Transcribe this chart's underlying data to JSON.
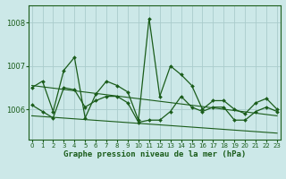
{
  "title": "Graphe pression niveau de la mer (hPa)",
  "background_color": "#cce8e8",
  "grid_color": "#aacccc",
  "line_color": "#1a5c1a",
  "x_ticks": [
    0,
    1,
    2,
    3,
    4,
    5,
    6,
    7,
    8,
    9,
    10,
    11,
    12,
    13,
    14,
    15,
    16,
    17,
    18,
    19,
    20,
    21,
    22,
    23
  ],
  "y_ticks": [
    1006,
    1007,
    1008
  ],
  "ylim": [
    1005.3,
    1008.4
  ],
  "xlim": [
    -0.3,
    23.3
  ],
  "series": [
    {
      "x": [
        0,
        1,
        2,
        3,
        4,
        5,
        6,
        7,
        8,
        9,
        10,
        11,
        12,
        13,
        14,
        15,
        16,
        17,
        18,
        19,
        20,
        21,
        22,
        23
      ],
      "y": [
        1006.5,
        1006.65,
        1005.95,
        1006.9,
        1007.2,
        1005.8,
        1006.35,
        1006.65,
        1006.55,
        1006.4,
        1005.75,
        1008.1,
        1006.3,
        1007.0,
        1006.8,
        1006.55,
        1006.0,
        1006.2,
        1006.2,
        1006.0,
        1005.9,
        1006.15,
        1006.25,
        1006.0
      ]
    },
    {
      "x": [
        0,
        1,
        2,
        3,
        4,
        5,
        6,
        7,
        8,
        9,
        10,
        11,
        12,
        13,
        14,
        15,
        16,
        17,
        18,
        19,
        20,
        21,
        22,
        23
      ],
      "y": [
        1006.1,
        1005.95,
        1005.8,
        1006.5,
        1006.45,
        1006.05,
        1006.2,
        1006.3,
        1006.3,
        1006.15,
        1005.7,
        1005.75,
        1005.75,
        1005.95,
        1006.3,
        1006.05,
        1005.95,
        1006.05,
        1006.05,
        1005.75,
        1005.75,
        1005.95,
        1006.05,
        1005.95
      ]
    },
    {
      "x": [
        0,
        23
      ],
      "y": [
        1006.55,
        1005.85
      ]
    },
    {
      "x": [
        0,
        23
      ],
      "y": [
        1005.85,
        1005.45
      ]
    }
  ]
}
